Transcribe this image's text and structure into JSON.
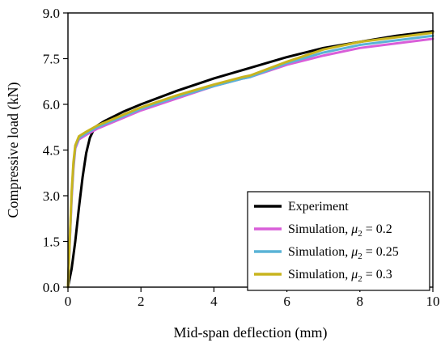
{
  "chart_data": {
    "type": "line",
    "title": "",
    "xlabel": "Mid-span deflection  (mm)",
    "ylabel": "Compressive load  (kN)",
    "xlim": [
      0,
      10
    ],
    "ylim": [
      0,
      9.0
    ],
    "xticks": [
      "0",
      "2",
      "4",
      "6",
      "8",
      "10"
    ],
    "xtick_values": [
      0,
      2,
      4,
      6,
      8,
      10
    ],
    "yticks": [
      "0.0",
      "1.5",
      "3.0",
      "4.5",
      "6.0",
      "7.5",
      "9.0"
    ],
    "ytick_values": [
      0,
      1.5,
      3.0,
      4.5,
      6.0,
      7.5,
      9.0
    ],
    "grid": false,
    "legend_position": "bottom-right",
    "series": [
      {
        "name": "Experiment",
        "name_parts": [
          "Experiment"
        ],
        "color": "#000000",
        "x": [
          0.0,
          0.1,
          0.2,
          0.3,
          0.4,
          0.5,
          0.6,
          0.7,
          0.8,
          1.0,
          1.5,
          2.0,
          3.0,
          4.0,
          5.0,
          6.0,
          7.0,
          8.0,
          9.0,
          10.0
        ],
        "y": [
          0.0,
          0.6,
          1.5,
          2.6,
          3.6,
          4.4,
          4.9,
          5.15,
          5.3,
          5.45,
          5.75,
          6.0,
          6.45,
          6.85,
          7.2,
          7.55,
          7.85,
          8.05,
          8.25,
          8.4
        ]
      },
      {
        "name": "Simulation, μ2 = 0.2",
        "name_parts": [
          "Simulation, ",
          "μ",
          "2",
          " = 0.2"
        ],
        "color": "#d95ed9",
        "x": [
          0.0,
          0.05,
          0.1,
          0.15,
          0.2,
          0.3,
          0.5,
          0.8,
          1.0,
          1.5,
          2.0,
          3.0,
          4.0,
          4.8,
          5.0,
          6.0,
          7.0,
          8.0,
          9.0,
          10.0
        ],
        "y": [
          0.0,
          1.5,
          2.9,
          3.9,
          4.55,
          4.85,
          5.0,
          5.2,
          5.3,
          5.55,
          5.8,
          6.2,
          6.6,
          6.85,
          6.9,
          7.3,
          7.6,
          7.85,
          8.0,
          8.15
        ]
      },
      {
        "name": "Simulation, μ2 = 0.25",
        "name_parts": [
          "Simulation, ",
          "μ",
          "2",
          " = 0.25"
        ],
        "color": "#5ab3d6",
        "x": [
          0.0,
          0.05,
          0.1,
          0.15,
          0.2,
          0.3,
          0.5,
          0.8,
          1.0,
          1.5,
          2.0,
          3.0,
          4.0,
          4.8,
          5.0,
          6.0,
          7.0,
          8.0,
          9.0,
          10.0
        ],
        "y": [
          0.0,
          1.55,
          3.0,
          4.0,
          4.6,
          4.9,
          5.05,
          5.25,
          5.35,
          5.6,
          5.85,
          6.25,
          6.6,
          6.85,
          6.9,
          7.35,
          7.7,
          7.95,
          8.1,
          8.25
        ]
      },
      {
        "name": "Simulation, μ2 = 0.3",
        "name_parts": [
          "Simulation, ",
          "μ",
          "2",
          " = 0.3"
        ],
        "color": "#c8b41e",
        "x": [
          0.0,
          0.05,
          0.1,
          0.15,
          0.2,
          0.3,
          0.5,
          0.8,
          1.0,
          1.5,
          2.0,
          3.0,
          4.0,
          4.8,
          5.0,
          6.0,
          7.0,
          8.0,
          9.0,
          10.0
        ],
        "y": [
          0.0,
          1.6,
          3.1,
          4.1,
          4.65,
          4.95,
          5.1,
          5.3,
          5.4,
          5.65,
          5.9,
          6.3,
          6.65,
          6.9,
          6.95,
          7.4,
          7.8,
          8.05,
          8.2,
          8.35
        ]
      }
    ]
  }
}
